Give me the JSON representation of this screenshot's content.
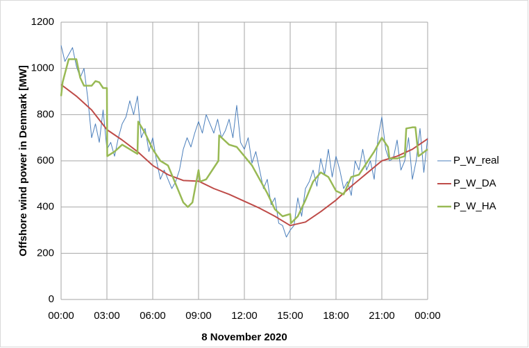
{
  "chart_data": {
    "type": "line",
    "xlabel": "8 November 2020",
    "ylabel": "Offshore wind power in Denmark [MW]",
    "xlim": [
      0,
      24
    ],
    "xticks": [
      {
        "value": 0,
        "label": "00:00"
      },
      {
        "value": 3,
        "label": "03:00"
      },
      {
        "value": 6,
        "label": "06:00"
      },
      {
        "value": 9,
        "label": "09:00"
      },
      {
        "value": 12,
        "label": "12:00"
      },
      {
        "value": 15,
        "label": "15:00"
      },
      {
        "value": 18,
        "label": "18:00"
      },
      {
        "value": 21,
        "label": "21:00"
      },
      {
        "value": 24,
        "label": "00:00"
      }
    ],
    "ylim": [
      0,
      1200
    ],
    "yticks": [
      0,
      200,
      400,
      600,
      800,
      1000,
      1200
    ],
    "grid": true,
    "legend": "right",
    "series": [
      {
        "name": "P_W_real",
        "color": "#4a7ebb",
        "width": 1,
        "x": [
          0,
          0.25,
          0.5,
          0.75,
          1,
          1.25,
          1.5,
          1.75,
          2,
          2.25,
          2.5,
          2.75,
          3,
          3.25,
          3.5,
          3.75,
          4,
          4.25,
          4.5,
          4.75,
          5,
          5.25,
          5.5,
          5.75,
          6,
          6.25,
          6.5,
          6.75,
          7,
          7.25,
          7.5,
          7.75,
          8,
          8.25,
          8.5,
          8.75,
          9,
          9.25,
          9.5,
          9.75,
          10,
          10.25,
          10.5,
          10.75,
          11,
          11.25,
          11.5,
          11.75,
          12,
          12.25,
          12.5,
          12.75,
          13,
          13.25,
          13.5,
          13.75,
          14,
          14.25,
          14.5,
          14.75,
          15,
          15.25,
          15.5,
          15.75,
          16,
          16.25,
          16.5,
          16.75,
          17,
          17.25,
          17.5,
          17.75,
          18,
          18.25,
          18.5,
          18.75,
          19,
          19.25,
          19.5,
          19.75,
          20,
          20.25,
          20.5,
          20.75,
          21,
          21.25,
          21.5,
          21.75,
          22,
          22.25,
          22.5,
          22.75,
          23,
          23.25,
          23.5,
          23.75,
          24
        ],
        "values": [
          1100,
          1030,
          1060,
          1090,
          1010,
          960,
          1000,
          870,
          700,
          760,
          680,
          820,
          650,
          680,
          620,
          700,
          760,
          790,
          860,
          800,
          880,
          700,
          740,
          640,
          700,
          600,
          520,
          560,
          520,
          480,
          510,
          560,
          650,
          700,
          660,
          720,
          770,
          720,
          800,
          760,
          720,
          780,
          700,
          730,
          780,
          700,
          840,
          680,
          650,
          700,
          590,
          640,
          560,
          480,
          520,
          410,
          440,
          330,
          320,
          270,
          300,
          320,
          440,
          360,
          480,
          510,
          560,
          490,
          610,
          540,
          650,
          530,
          620,
          560,
          480,
          510,
          450,
          600,
          560,
          650,
          560,
          600,
          520,
          700,
          790,
          650,
          600,
          610,
          690,
          560,
          600,
          700,
          520,
          600,
          740,
          550,
          700
        ]
      },
      {
        "name": "P_W_DA",
        "color": "#be4b48",
        "width": 2,
        "x": [
          0,
          1,
          2,
          3,
          4,
          5,
          6,
          7,
          8,
          9,
          10,
          11,
          12,
          13,
          14,
          15,
          16,
          17,
          18,
          19,
          20,
          21,
          22,
          23,
          24
        ],
        "values": [
          930,
          880,
          820,
          735,
          690,
          640,
          580,
          540,
          515,
          512,
          480,
          455,
          425,
          395,
          360,
          320,
          335,
          380,
          430,
          490,
          545,
          600,
          620,
          650,
          695
        ]
      },
      {
        "name": "P_W_HA",
        "color": "#98b954",
        "width": 2.5,
        "x": [
          0,
          0.1,
          0.5,
          1,
          1.25,
          1.5,
          2,
          2.25,
          2.5,
          2.75,
          3,
          3.02,
          3.5,
          4,
          4.5,
          5,
          5.05,
          5.5,
          6,
          6.5,
          7,
          7.5,
          8,
          8.3,
          8.6,
          9,
          9.1,
          9.5,
          10,
          10.3,
          10.35,
          11,
          11.5,
          12,
          12.5,
          13,
          13.5,
          14,
          14.5,
          15,
          15.05,
          15.5,
          16,
          16.5,
          17,
          17.5,
          18,
          18.5,
          19,
          19.5,
          20,
          20.5,
          21,
          21.4,
          21.5,
          22,
          22.5,
          22.6,
          23,
          23.2,
          23.4,
          24
        ],
        "values": [
          880,
          940,
          1040,
          1040,
          960,
          925,
          925,
          945,
          940,
          915,
          915,
          620,
          640,
          670,
          650,
          630,
          770,
          720,
          650,
          600,
          580,
          500,
          420,
          400,
          420,
          560,
          510,
          520,
          570,
          600,
          710,
          670,
          660,
          620,
          580,
          520,
          460,
          390,
          360,
          370,
          330,
          360,
          430,
          510,
          550,
          530,
          470,
          455,
          530,
          540,
          590,
          640,
          700,
          660,
          610,
          610,
          620,
          740,
          745,
          745,
          620,
          650
        ]
      }
    ]
  }
}
